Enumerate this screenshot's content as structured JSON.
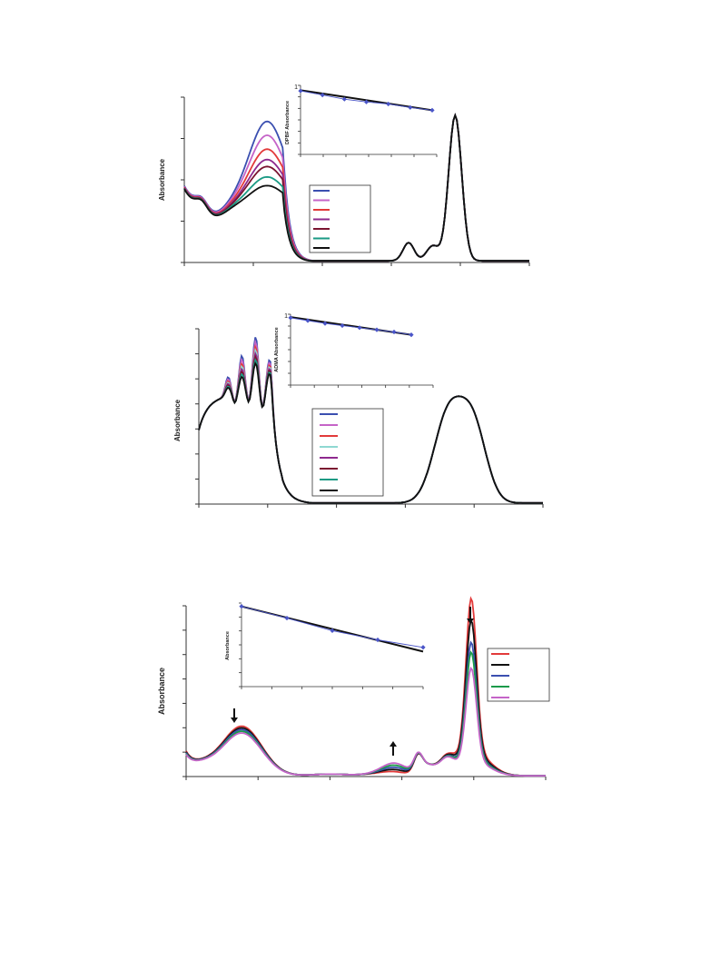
{
  "chart_data": [
    {
      "type": "line",
      "ylabel": "Absorbance",
      "xlim": [
        0,
        100
      ],
      "ylim": [
        0,
        1
      ],
      "grid": false,
      "legend": {
        "placement": "center-right",
        "entries": 7,
        "text": ""
      },
      "series": [
        {
          "color": "#3b4fb0"
        },
        {
          "color": "#c564c8"
        },
        {
          "color": "#e23a3a"
        },
        {
          "color": "#8e2a8e"
        },
        {
          "color": "#7a1430"
        },
        {
          "color": "#1a9a84"
        },
        {
          "color": "#111111"
        }
      ],
      "peak1_heights": [
        0.83,
        0.75,
        0.67,
        0.61,
        0.57,
        0.51,
        0.46
      ],
      "inset": {
        "type": "scatter+fit",
        "ylabel": "DPBF Absorbance",
        "y_tick_label": "1",
        "x": [
          0,
          1,
          2,
          3,
          4,
          5,
          6
        ],
        "y": [
          0.92,
          0.86,
          0.8,
          0.76,
          0.73,
          0.68,
          0.64
        ],
        "fit": [
          0.93,
          0.64
        ]
      }
    },
    {
      "type": "line",
      "ylabel": "Absorbance",
      "xlim": [
        0,
        100
      ],
      "ylim": [
        0,
        1
      ],
      "grid": false,
      "legend": {
        "placement": "center-right",
        "entries": 8,
        "text": ""
      },
      "series": [
        {
          "color": "#3b4fb0"
        },
        {
          "color": "#c564c8"
        },
        {
          "color": "#e23a3a"
        },
        {
          "color": "#8fd8d2"
        },
        {
          "color": "#8e2a8e"
        },
        {
          "color": "#7a1430"
        },
        {
          "color": "#1a9a84"
        },
        {
          "color": "#111111"
        }
      ],
      "peak_heights": [
        0.92,
        0.86,
        0.8,
        0.76,
        0.72,
        0.68,
        0.64,
        0.6
      ],
      "inset": {
        "type": "scatter+fit",
        "ylabel": "ADMA Absorbance",
        "y_tick_label": "1",
        "x": [
          0,
          1,
          2,
          3,
          4,
          5,
          6,
          7
        ],
        "y": [
          0.95,
          0.91,
          0.87,
          0.84,
          0.81,
          0.78,
          0.75,
          0.71
        ],
        "fit": [
          0.96,
          0.71
        ]
      }
    },
    {
      "type": "line",
      "ylabel": "Absorbance",
      "xlim": [
        0,
        100
      ],
      "ylim": [
        0,
        1
      ],
      "grid": false,
      "legend": {
        "placement": "right",
        "entries": 5,
        "text": ""
      },
      "series": [
        {
          "color": "#e23a3a"
        },
        {
          "color": "#111111"
        },
        {
          "color": "#3b4fb0"
        },
        {
          "color": "#1a9a4a"
        },
        {
          "color": "#c564c8"
        }
      ],
      "main_peak_heights": [
        0.89,
        0.78,
        0.67,
        0.62,
        0.54
      ],
      "annotations": [
        "arrow-down",
        "arrow-up",
        "arrow-down"
      ],
      "inset": {
        "type": "scatter+fit",
        "ylabel": "Absorbance",
        "x": [
          0,
          1,
          2,
          3,
          4
        ],
        "y": [
          0.96,
          0.82,
          0.67,
          0.56,
          0.47
        ],
        "fit": [
          0.96,
          0.42
        ]
      }
    }
  ]
}
